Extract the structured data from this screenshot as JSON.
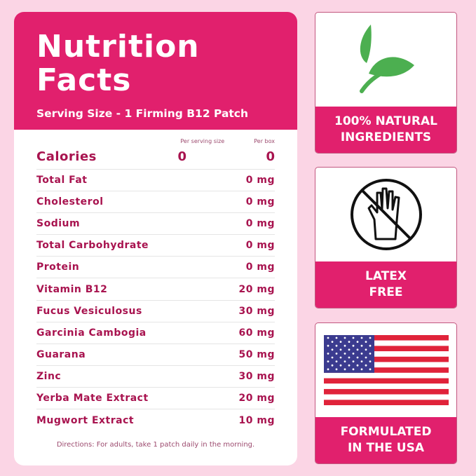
{
  "label": {
    "title_line1": "Nutrition",
    "title_line2": "Facts",
    "serving": "Serving Size - 1 Firming B12 Patch",
    "col_per_serving": "Per serving size",
    "col_per_box": "Per box",
    "calories": {
      "label": "Calories",
      "per_serving": "0",
      "per_box": "0"
    },
    "rows": [
      {
        "name": "Total Fat",
        "amount": "0 mg"
      },
      {
        "name": "Cholesterol",
        "amount": "0 mg"
      },
      {
        "name": "Sodium",
        "amount": "0 mg"
      },
      {
        "name": "Total Carbohydrate",
        "amount": "0 mg"
      },
      {
        "name": "Protein",
        "amount": "0 mg"
      },
      {
        "name": "Vitamin B12",
        "amount": "20 mg"
      },
      {
        "name": "Fucus Vesiculosus",
        "amount": "30 mg"
      },
      {
        "name": "Garcinia Cambogia",
        "amount": "60 mg"
      },
      {
        "name": "Guarana",
        "amount": "50 mg"
      },
      {
        "name": "Zinc",
        "amount": "30 mg"
      },
      {
        "name": "Yerba Mate Extract",
        "amount": "20 mg"
      },
      {
        "name": "Mugwort Extract",
        "amount": "10 mg"
      }
    ],
    "directions": "Directions: For adults, take 1 patch daily in the morning."
  },
  "badges": [
    {
      "line1": "100% NATURAL",
      "line2": "INGREDIENTS",
      "icon": "leaf-icon"
    },
    {
      "line1": "LATEX",
      "line2": "FREE",
      "icon": "no-glove-icon"
    },
    {
      "line1": "FORMULATED",
      "line2": "IN THE USA",
      "icon": "us-flag-icon"
    }
  ],
  "colors": {
    "accent": "#e1206d",
    "text": "#a8134f",
    "background": "#fbd5e5",
    "leaf": "#4caf50"
  }
}
